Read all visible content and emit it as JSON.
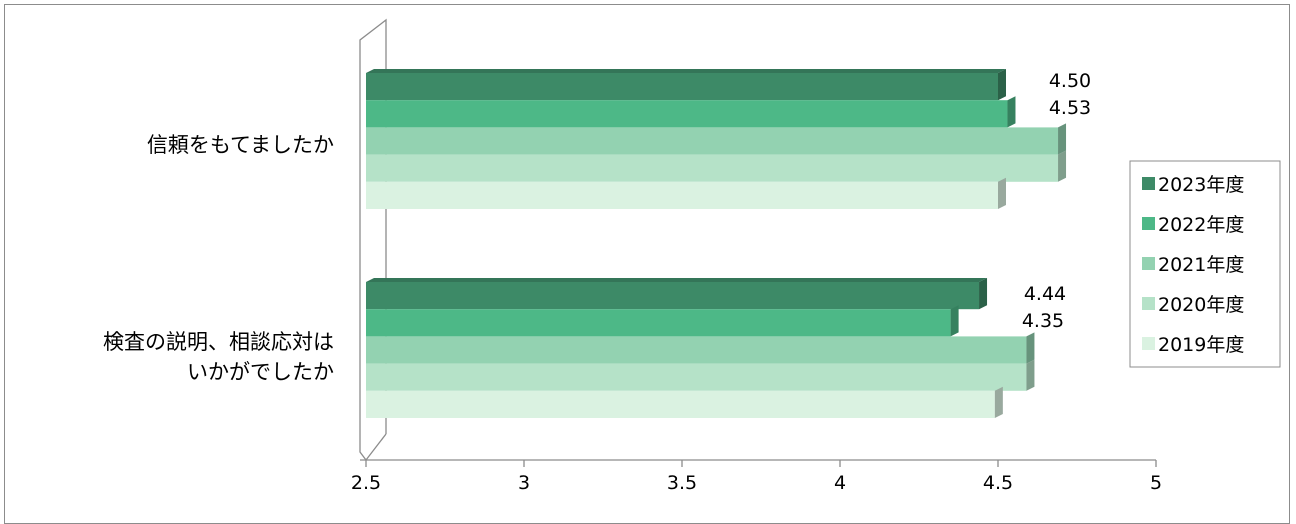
{
  "chart_data": {
    "type": "bar",
    "orientation": "horizontal",
    "categories": [
      "信頼をもてましたか",
      "検査の説明、相談応対はいかがでしたか"
    ],
    "category_lines": [
      [
        "信頼をもてましたか"
      ],
      [
        "検査の説明、相談応対は",
        "いかがでしたか"
      ]
    ],
    "series": [
      {
        "name": "2023年度",
        "values": [
          4.5,
          4.44
        ],
        "color": "#3d8a67",
        "labeled": true
      },
      {
        "name": "2022年度",
        "values": [
          4.53,
          4.35
        ],
        "color": "#4db887",
        "labeled": true
      },
      {
        "name": "2021年度",
        "values": [
          4.69,
          4.59
        ],
        "color": "#93d2b1",
        "labeled": false
      },
      {
        "name": "2020年度",
        "values": [
          4.69,
          4.59
        ],
        "color": "#b5e2c8",
        "labeled": false
      },
      {
        "name": "2019年度",
        "values": [
          4.5,
          4.49
        ],
        "color": "#daf2e1",
        "labeled": false
      }
    ],
    "data_labels": [
      [
        "4.50",
        "4.44"
      ],
      [
        "4.53",
        "4.35"
      ]
    ],
    "xlim": [
      2.5,
      5
    ],
    "x_ticks": [
      "2.5",
      "3",
      "3.5",
      "4",
      "4.5",
      "5"
    ],
    "grid": false,
    "legend_position": "right"
  }
}
